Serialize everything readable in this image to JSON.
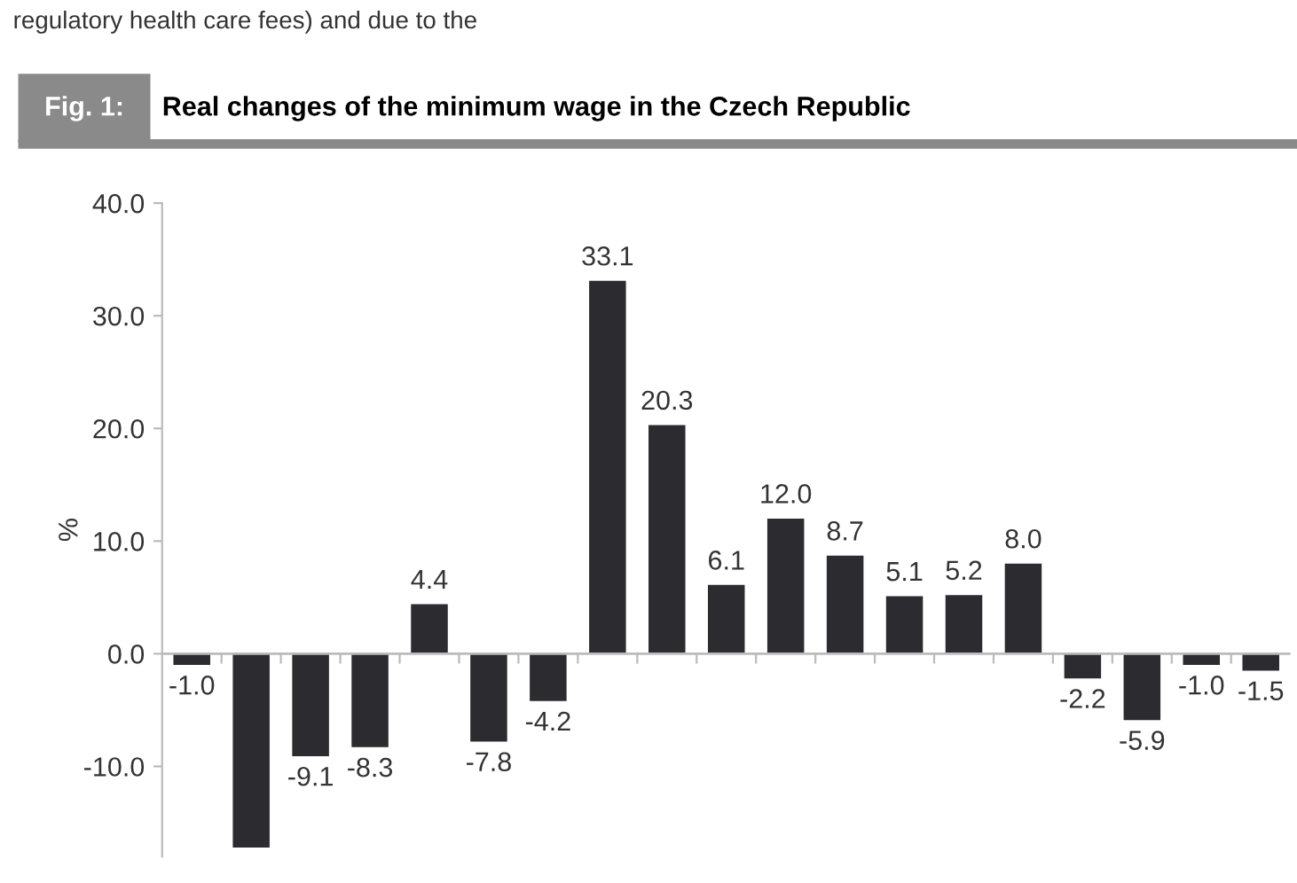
{
  "chart_data": {
    "type": "bar",
    "title": "Real changes of the minimum wage in the Czech Republic",
    "ylabel": "%",
    "annotations": [
      "regulatory health care fees) and due to the",
      "Fig. 1:"
    ],
    "categories": [
      null,
      null,
      null,
      null,
      null,
      null,
      null,
      null,
      null,
      null,
      null,
      null,
      null,
      null,
      null,
      null,
      null,
      null,
      null
    ],
    "values": [
      -1.0,
      -17.2,
      -9.1,
      -8.3,
      4.4,
      -7.8,
      -4.2,
      33.1,
      20.3,
      6.1,
      12.0,
      8.7,
      5.1,
      5.2,
      8.0,
      -2.2,
      -5.9,
      -1.0,
      -1.5
    ],
    "value_labels": [
      "-1.0",
      null,
      "-9.1",
      "-8.3",
      "4.4",
      "-7.8",
      "-4.2",
      "33.1",
      "20.3",
      "6.1",
      "12.0",
      "8.7",
      "5.1",
      "5.2",
      "8.0",
      "-2.2",
      "-5.9",
      "-1.0",
      "-1.5"
    ],
    "color": "#2b2b30",
    "ylim": [
      -18,
      40
    ],
    "yticks": [
      {
        "value": -10,
        "label": "-10.0"
      },
      {
        "value": 0,
        "label": "0.0"
      },
      {
        "value": 10,
        "label": "10.0"
      },
      {
        "value": 20,
        "label": "20.0"
      },
      {
        "value": 30,
        "label": "30.0"
      },
      {
        "value": 40,
        "label": "40.0"
      }
    ],
    "ref_lines": [
      {
        "axis": "y",
        "value": 0,
        "color": "#bbbbbb"
      }
    ],
    "grid": false,
    "legend": false
  }
}
